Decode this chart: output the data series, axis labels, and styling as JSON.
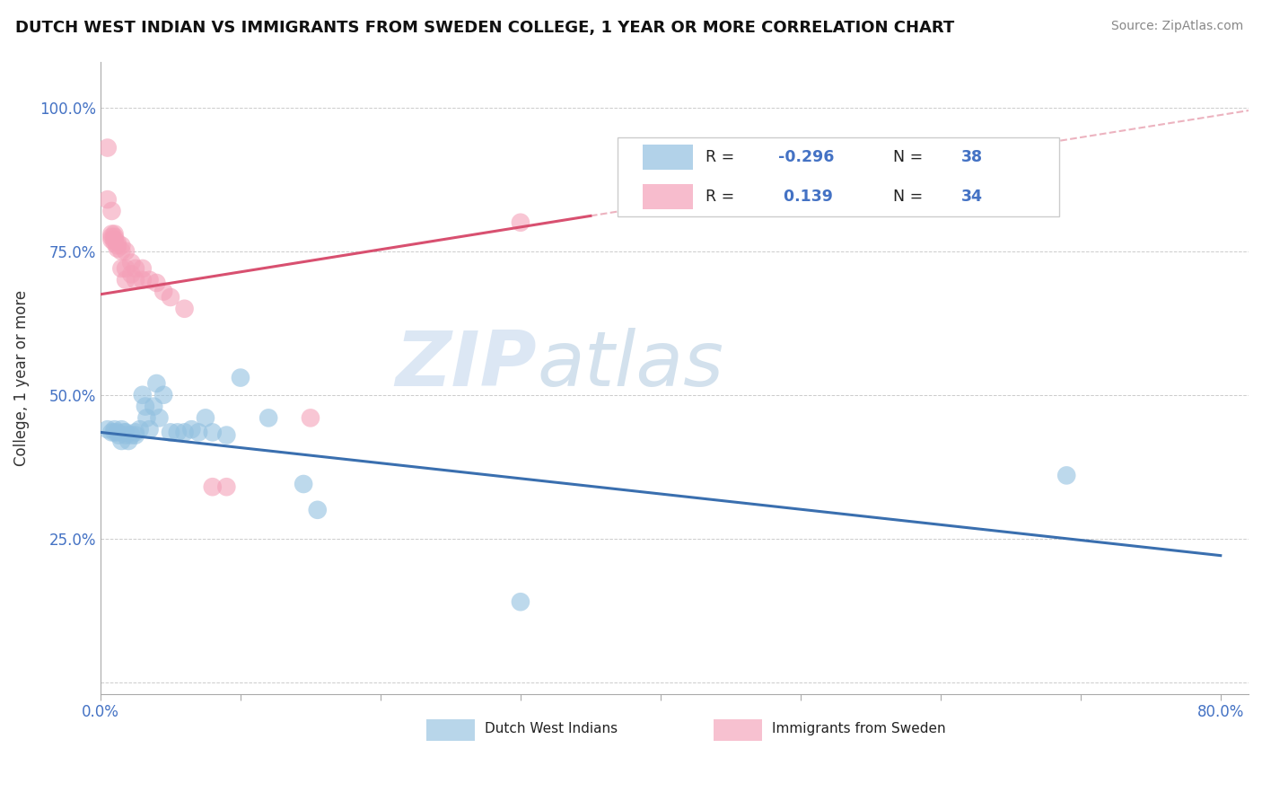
{
  "title": "DUTCH WEST INDIAN VS IMMIGRANTS FROM SWEDEN COLLEGE, 1 YEAR OR MORE CORRELATION CHART",
  "source": "Source: ZipAtlas.com",
  "ylabel": "College, 1 year or more",
  "watermark_zip": "ZIP",
  "watermark_atlas": "atlas",
  "xlim": [
    0.0,
    0.82
  ],
  "ylim": [
    -0.02,
    1.08
  ],
  "xticks": [
    0.0,
    0.1,
    0.2,
    0.3,
    0.4,
    0.5,
    0.6,
    0.7,
    0.8
  ],
  "xtick_labels": [
    "0.0%",
    "",
    "",
    "",
    "",
    "",
    "",
    "",
    "80.0%"
  ],
  "yticks": [
    0.0,
    0.25,
    0.5,
    0.75,
    1.0
  ],
  "ytick_labels": [
    "",
    "25.0%",
    "50.0%",
    "75.0%",
    "100.0%"
  ],
  "blue_color": "#92c0e0",
  "pink_color": "#f4a0b8",
  "blue_line_color": "#3a6faf",
  "pink_line_color": "#d85070",
  "pink_dash_color": "#e8a0b0",
  "blue_intercept": 0.435,
  "blue_slope": -0.268,
  "pink_intercept": 0.675,
  "pink_slope": 0.39,
  "blue_points": [
    [
      0.005,
      0.44
    ],
    [
      0.008,
      0.435
    ],
    [
      0.01,
      0.44
    ],
    [
      0.01,
      0.435
    ],
    [
      0.012,
      0.435
    ],
    [
      0.013,
      0.43
    ],
    [
      0.015,
      0.44
    ],
    [
      0.015,
      0.42
    ],
    [
      0.017,
      0.435
    ],
    [
      0.018,
      0.435
    ],
    [
      0.018,
      0.43
    ],
    [
      0.02,
      0.42
    ],
    [
      0.022,
      0.43
    ],
    [
      0.025,
      0.435
    ],
    [
      0.025,
      0.43
    ],
    [
      0.028,
      0.44
    ],
    [
      0.03,
      0.5
    ],
    [
      0.032,
      0.48
    ],
    [
      0.033,
      0.46
    ],
    [
      0.035,
      0.44
    ],
    [
      0.038,
      0.48
    ],
    [
      0.04,
      0.52
    ],
    [
      0.042,
      0.46
    ],
    [
      0.045,
      0.5
    ],
    [
      0.05,
      0.435
    ],
    [
      0.055,
      0.435
    ],
    [
      0.06,
      0.435
    ],
    [
      0.065,
      0.44
    ],
    [
      0.07,
      0.435
    ],
    [
      0.075,
      0.46
    ],
    [
      0.08,
      0.435
    ],
    [
      0.09,
      0.43
    ],
    [
      0.1,
      0.53
    ],
    [
      0.12,
      0.46
    ],
    [
      0.145,
      0.345
    ],
    [
      0.155,
      0.3
    ],
    [
      0.3,
      0.14
    ],
    [
      0.69,
      0.36
    ]
  ],
  "pink_points": [
    [
      0.005,
      0.93
    ],
    [
      0.005,
      0.84
    ],
    [
      0.008,
      0.82
    ],
    [
      0.008,
      0.78
    ],
    [
      0.008,
      0.775
    ],
    [
      0.008,
      0.77
    ],
    [
      0.01,
      0.78
    ],
    [
      0.01,
      0.775
    ],
    [
      0.01,
      0.77
    ],
    [
      0.01,
      0.765
    ],
    [
      0.012,
      0.765
    ],
    [
      0.012,
      0.76
    ],
    [
      0.012,
      0.755
    ],
    [
      0.015,
      0.76
    ],
    [
      0.015,
      0.75
    ],
    [
      0.015,
      0.72
    ],
    [
      0.018,
      0.75
    ],
    [
      0.018,
      0.72
    ],
    [
      0.018,
      0.7
    ],
    [
      0.022,
      0.73
    ],
    [
      0.022,
      0.71
    ],
    [
      0.025,
      0.72
    ],
    [
      0.025,
      0.7
    ],
    [
      0.03,
      0.72
    ],
    [
      0.03,
      0.7
    ],
    [
      0.035,
      0.7
    ],
    [
      0.04,
      0.695
    ],
    [
      0.045,
      0.68
    ],
    [
      0.05,
      0.67
    ],
    [
      0.06,
      0.65
    ],
    [
      0.08,
      0.34
    ],
    [
      0.09,
      0.34
    ],
    [
      0.15,
      0.46
    ],
    [
      0.3,
      0.8
    ]
  ]
}
